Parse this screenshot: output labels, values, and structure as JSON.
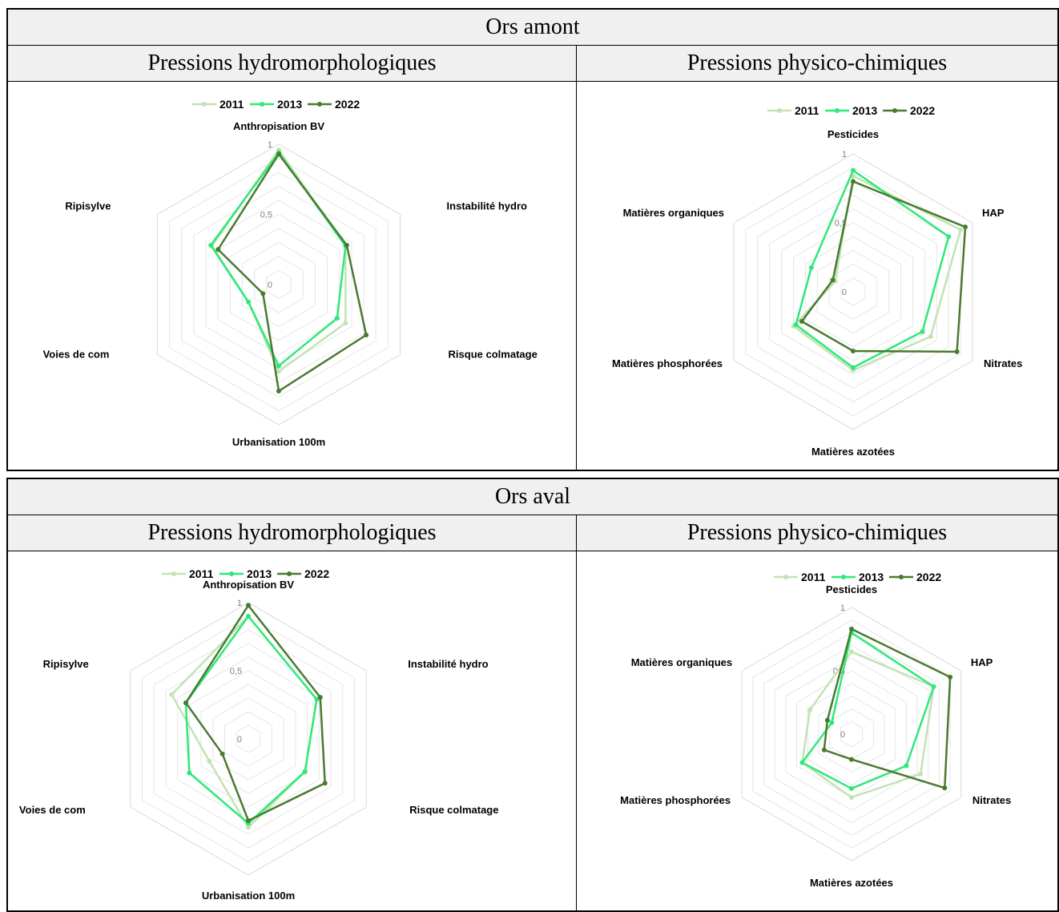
{
  "colors": {
    "2011": "#c2e3b4",
    "2013": "#2fe87a",
    "2022": "#4a7a30"
  },
  "tables": [
    {
      "title": "Ors amont",
      "left_header": "Pressions hydromorphologiques",
      "right_header": "Pressions physico-chimiques"
    },
    {
      "title": "Ors aval",
      "left_header": "Pressions hydromorphologiques",
      "right_header": "Pressions physico-chimiques"
    }
  ],
  "chart_data": [
    {
      "type": "radar",
      "panel": "Ors amont - Pressions hydromorphologiques",
      "axes": [
        "Anthropisation BV",
        "Instabilité hydro",
        "Risque colmatage",
        "Urbanisation 100m",
        "Voies de com",
        "Ripisylve"
      ],
      "tick_labels": [
        "0",
        "0,5",
        "1"
      ],
      "range": [
        0,
        1
      ],
      "legend_position": "top",
      "series": [
        {
          "name": "2011",
          "values": [
            0.96,
            0.55,
            0.55,
            0.62,
            0.25,
            0.55
          ]
        },
        {
          "name": "2013",
          "values": [
            0.94,
            0.55,
            0.48,
            0.58,
            0.25,
            0.56
          ]
        },
        {
          "name": "2022",
          "values": [
            0.93,
            0.56,
            0.72,
            0.76,
            0.13,
            0.5
          ]
        }
      ]
    },
    {
      "type": "radar",
      "panel": "Ors amont - Pressions physico-chimiques",
      "axes": [
        "Pesticides",
        "HAP",
        "Nitrates",
        "Matières azotées",
        "Matières phosphorées",
        "Matières organiques"
      ],
      "tick_labels": [
        "0",
        "0,5",
        "1"
      ],
      "range": [
        0,
        1
      ],
      "legend_position": "top",
      "series": [
        {
          "name": "2011",
          "values": [
            0.84,
            0.9,
            0.65,
            0.57,
            0.5,
            0.15
          ]
        },
        {
          "name": "2013",
          "values": [
            0.88,
            0.8,
            0.58,
            0.55,
            0.48,
            0.35
          ]
        },
        {
          "name": "2022",
          "values": [
            0.8,
            0.94,
            0.87,
            0.43,
            0.43,
            0.17
          ]
        }
      ]
    },
    {
      "type": "radar",
      "panel": "Ors aval - Pressions hydromorphologiques",
      "axes": [
        "Anthropisation BV",
        "Instabilité hydro",
        "Risque colmatage",
        "Urbanisation 100m",
        "Voies de com",
        "Ripisylve"
      ],
      "tick_labels": [
        "0",
        "0,5",
        "1"
      ],
      "range": [
        0,
        1
      ],
      "legend_position": "top",
      "series": [
        {
          "name": "2011",
          "values": [
            0.9,
            0.58,
            0.48,
            0.65,
            0.33,
            0.65
          ]
        },
        {
          "name": "2013",
          "values": [
            0.9,
            0.58,
            0.48,
            0.62,
            0.5,
            0.53
          ]
        },
        {
          "name": "2022",
          "values": [
            0.98,
            0.61,
            0.65,
            0.6,
            0.22,
            0.53
          ]
        }
      ]
    },
    {
      "type": "radar",
      "panel": "Ors aval - Pressions physico-chimiques",
      "axes": [
        "Pesticides",
        "HAP",
        "Nitrates",
        "Matières azotées",
        "Matières phosphorées",
        "Matières organiques"
      ],
      "tick_labels": [
        "0",
        "0,5",
        "1"
      ],
      "range": [
        0,
        1
      ],
      "legend_position": "top",
      "series": [
        {
          "name": "2011",
          "values": [
            0.65,
            0.75,
            0.63,
            0.5,
            0.45,
            0.38
          ]
        },
        {
          "name": "2013",
          "values": [
            0.8,
            0.75,
            0.5,
            0.43,
            0.45,
            0.18
          ]
        },
        {
          "name": "2022",
          "values": [
            0.83,
            0.9,
            0.85,
            0.2,
            0.25,
            0.22
          ]
        }
      ]
    }
  ]
}
